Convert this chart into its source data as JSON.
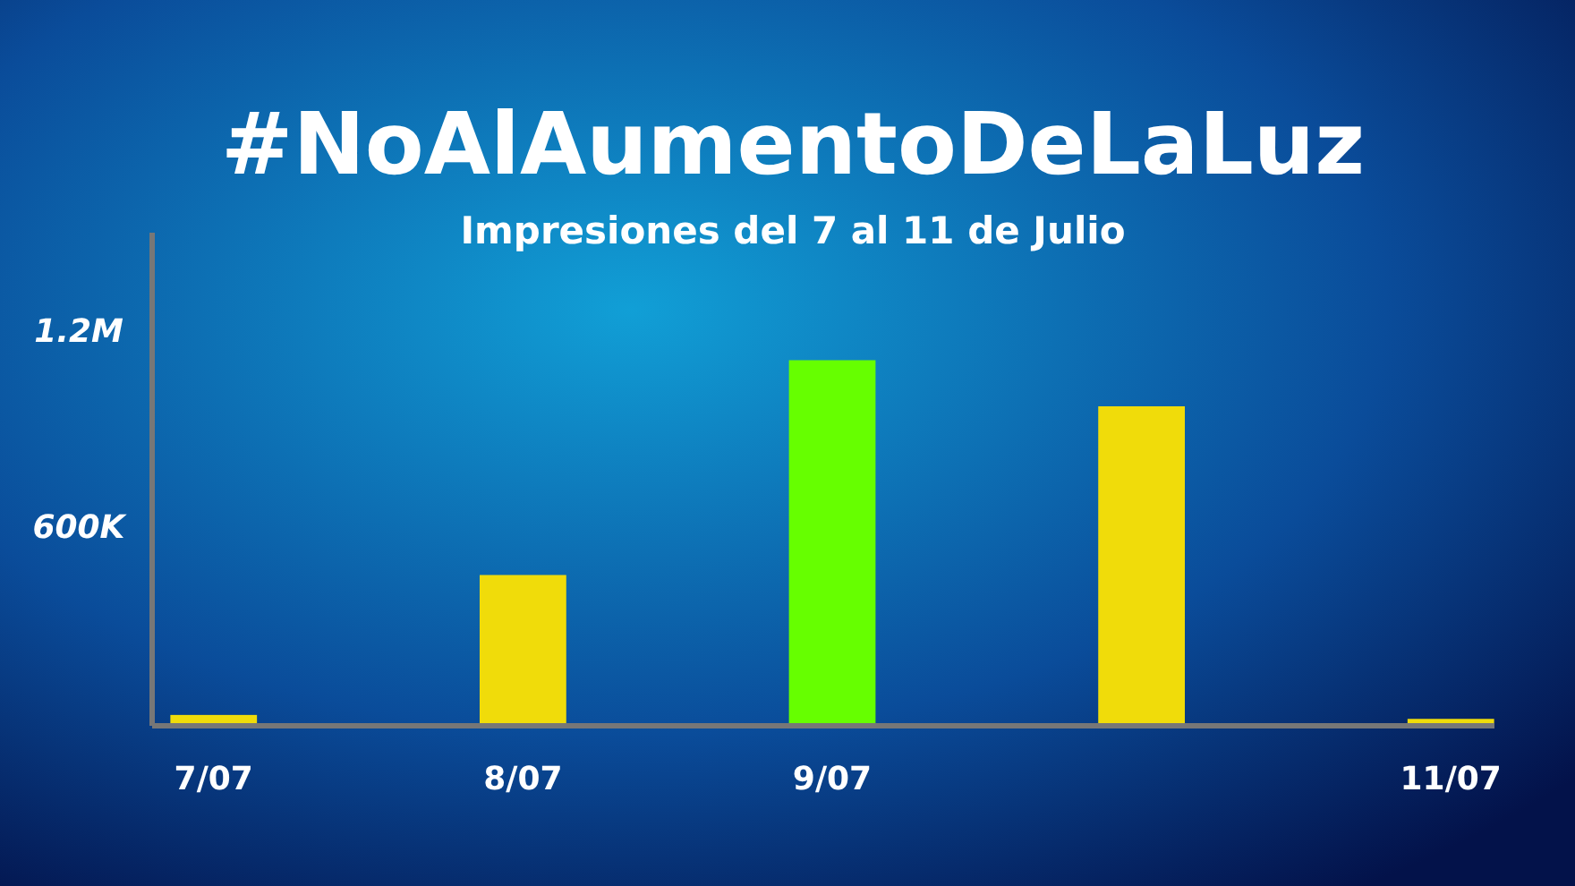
{
  "chart_data": {
    "type": "bar",
    "title": "#NoAlAumentoDeLaLuz",
    "subtitle": "Impresiones del 7 al 11 de Julio",
    "categories": [
      "7/07",
      "8/07",
      "9/07",
      null,
      "11/07"
    ],
    "values": [
      25000,
      453000,
      1110000,
      969000,
      13000
    ],
    "colors": [
      "#f0dc0a",
      "#f0dc0a",
      "#66ff00",
      "#f0dc0a",
      "#f0dc0a"
    ],
    "ylim": [
      0,
      1500000
    ],
    "yticks": [
      {
        "value": 600000,
        "label": "600K"
      },
      {
        "value": 1200000,
        "label": "1.2M"
      }
    ]
  }
}
